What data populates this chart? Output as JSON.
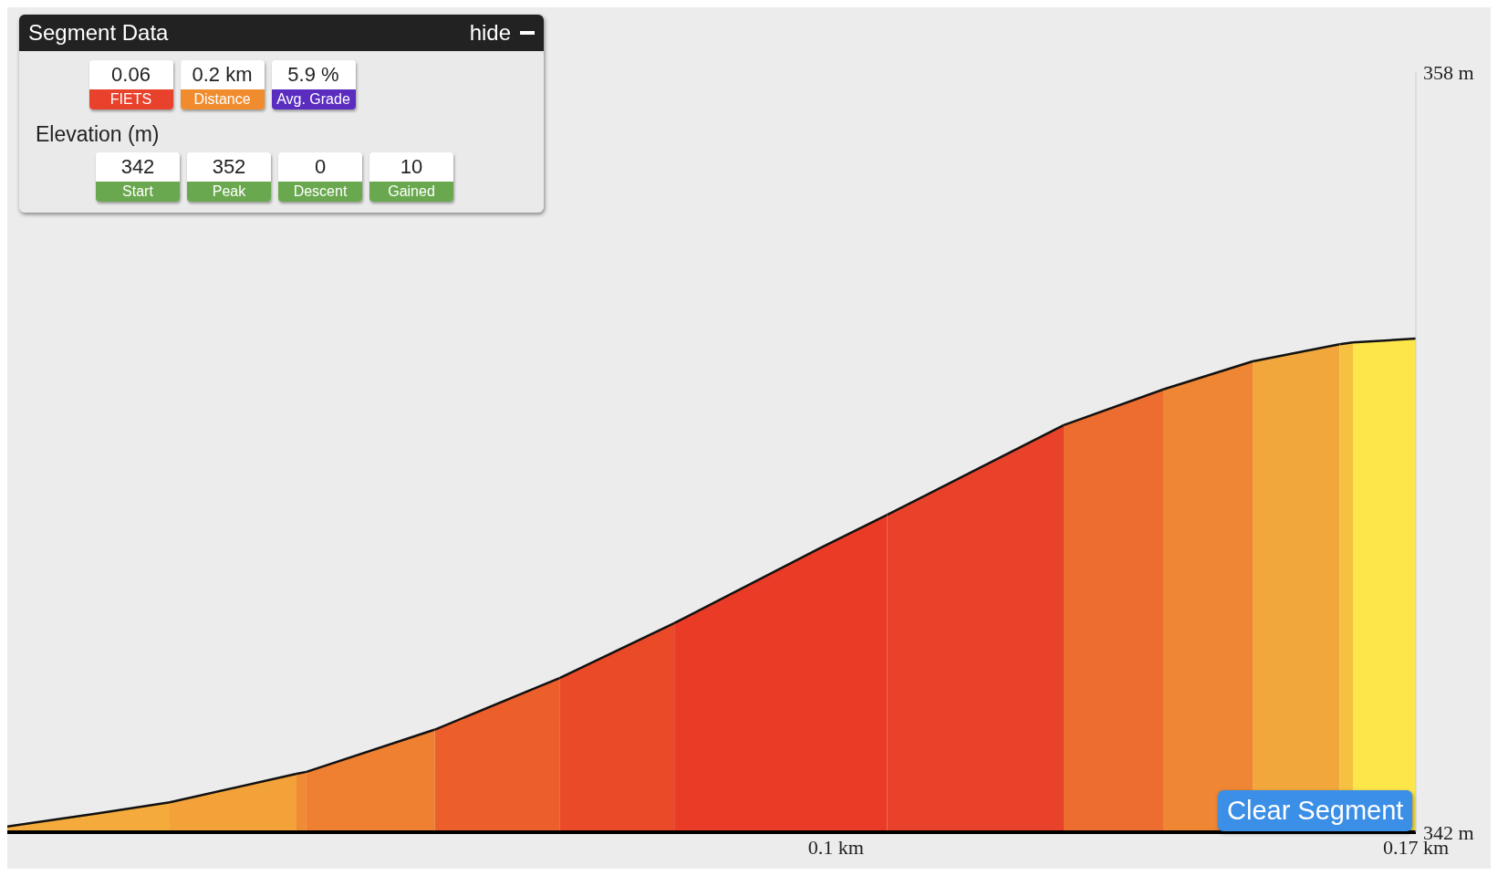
{
  "chart_data": {
    "type": "area",
    "title": "Segment Data",
    "annotations": [
      "hide",
      "0.06",
      "FIETS",
      "0.2 km",
      "Distance",
      "5.9 %",
      "Avg. Grade",
      "Elevation (m)",
      "342",
      "Start",
      "352",
      "Peak",
      "0",
      "Descent",
      "10",
      "Gained",
      "Clear Segment"
    ],
    "xlim": [
      0,
      0.17
    ],
    "xticks": [
      {
        "value": 0.1,
        "label": "0.1 km"
      },
      {
        "value": 0.17,
        "label": "0.17 km"
      }
    ],
    "ylim": [
      342,
      358
    ],
    "yticks": [
      {
        "value": 342,
        "label": "342 m"
      },
      {
        "value": 358,
        "label": "358 m"
      }
    ],
    "series": [
      {
        "color": "#f4ab3c",
        "x": [
          0,
          0.011,
          0.0196
        ],
        "values": [
          342.12,
          342.4,
          342.63
        ]
      },
      {
        "color": "#f3a23a",
        "x": [
          0.0196,
          0.0349
        ],
        "values": [
          342.63,
          343.23
        ]
      },
      {
        "color": "#ef8a35",
        "x": [
          0.0349,
          0.0361
        ],
        "values": [
          343.23,
          343.27
        ]
      },
      {
        "color": "#ef7f31",
        "x": [
          0.0361,
          0.0516
        ],
        "values": [
          343.27,
          344.16
        ]
      },
      {
        "color": "#ec5f2b",
        "x": [
          0.0516,
          0.0667
        ],
        "values": [
          344.16,
          345.25
        ]
      },
      {
        "color": "#ea4a27",
        "x": [
          0.0667,
          0.0805
        ],
        "values": [
          345.25,
          346.4
        ]
      },
      {
        "color": "#e93b25",
        "x": [
          0.0805,
          0.0982,
          0.1062
        ],
        "values": [
          346.4,
          347.99,
          348.68
        ]
      },
      {
        "color": "#e8432a",
        "x": [
          0.1062,
          0.1275
        ],
        "values": [
          348.68,
          350.57
        ]
      },
      {
        "color": "#ed6d30",
        "x": [
          0.1275,
          0.1395
        ],
        "values": [
          350.57,
          351.32
        ]
      },
      {
        "color": "#ef8633",
        "x": [
          0.1395,
          0.1503
        ],
        "values": [
          351.32,
          351.91
        ]
      },
      {
        "color": "#f2a73c",
        "x": [
          0.1503,
          0.1608
        ],
        "values": [
          351.91,
          352.27
        ]
      },
      {
        "color": "#f6c040",
        "x": [
          0.1608,
          0.1624
        ],
        "values": [
          352.27,
          352.31
        ]
      },
      {
        "color": "#fde64a",
        "x": [
          0.1624,
          0.17
        ],
        "values": [
          352.31,
          352.39
        ]
      }
    ]
  }
}
